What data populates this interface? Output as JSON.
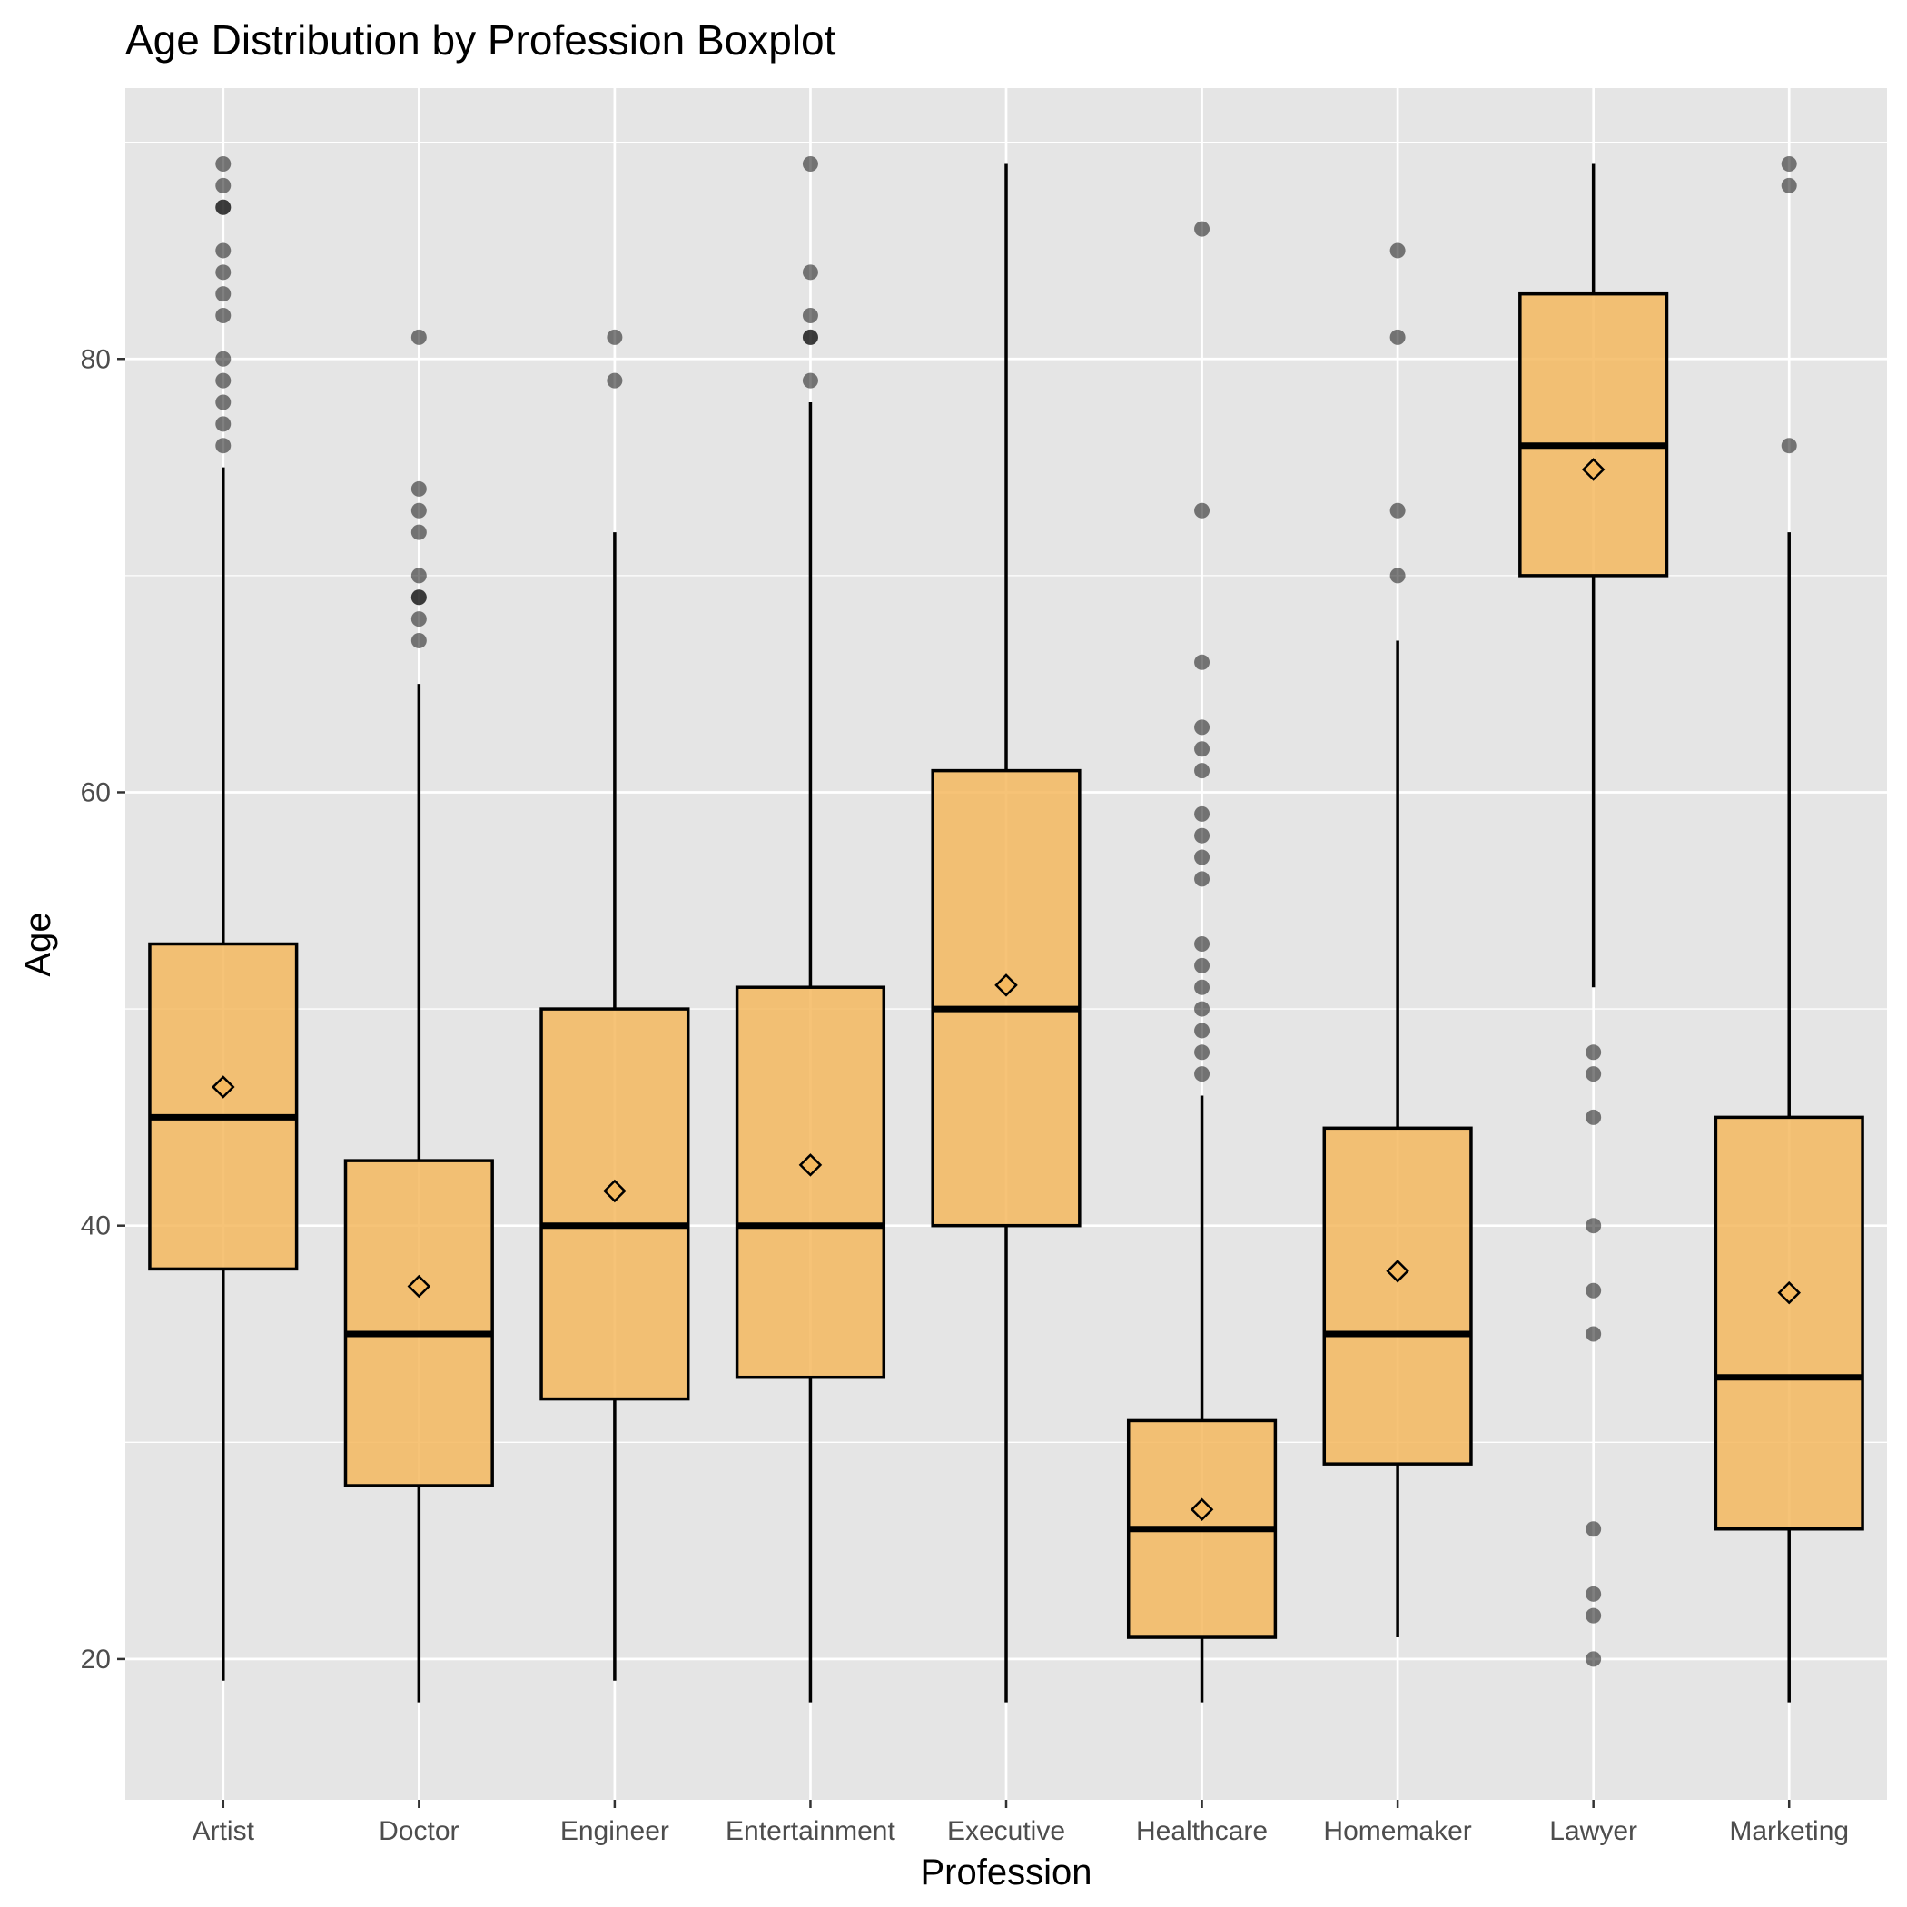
{
  "chart_data": {
    "type": "boxplot",
    "title": "Age Distribution by Profession Boxplot",
    "xlabel": "Profession",
    "ylabel": "Age",
    "ylim": [
      13.5,
      92.5
    ],
    "yticks": [
      20,
      40,
      60,
      80
    ],
    "grid": true,
    "legend": "none",
    "colors": {
      "panel": "#e5e5e5",
      "grid": "#ffffff",
      "box_fill": "#f5b95f",
      "box_stroke": "#000000",
      "outlier": "#000000",
      "mean_marker": "#000000"
    },
    "categories": [
      "Artist",
      "Doctor",
      "Engineer",
      "Entertainment",
      "Executive",
      "Healthcare",
      "Homemaker",
      "Lawyer",
      "Marketing"
    ],
    "boxes": [
      {
        "category": "Artist",
        "whisker_low": 19,
        "q1": 38,
        "median": 45,
        "q3": 53,
        "whisker_high": 75,
        "mean": 46.4,
        "outliers": [
          89,
          88,
          87,
          87,
          85,
          84,
          83,
          82,
          80,
          79,
          78,
          77,
          76
        ]
      },
      {
        "category": "Doctor",
        "whisker_low": 18,
        "q1": 28,
        "median": 35,
        "q3": 43,
        "whisker_high": 65,
        "mean": 37.2,
        "outliers": [
          81,
          74,
          73,
          72,
          70,
          69,
          69,
          68,
          67
        ]
      },
      {
        "category": "Engineer",
        "whisker_low": 19,
        "q1": 32,
        "median": 40,
        "q3": 50,
        "whisker_high": 72,
        "mean": 41.6,
        "outliers": [
          81,
          79
        ]
      },
      {
        "category": "Entertainment",
        "whisker_low": 18,
        "q1": 33,
        "median": 40,
        "q3": 51,
        "whisker_high": 78,
        "mean": 42.8,
        "outliers": [
          89,
          84,
          82,
          81,
          81,
          79
        ]
      },
      {
        "category": "Executive",
        "whisker_low": 18,
        "q1": 40,
        "median": 50,
        "q3": 61,
        "whisker_high": 89,
        "mean": 51.1,
        "outliers": []
      },
      {
        "category": "Healthcare",
        "whisker_low": 18,
        "q1": 21,
        "median": 26,
        "q3": 31,
        "whisker_high": 46,
        "mean": 26.9,
        "outliers": [
          86,
          73,
          66,
          63,
          62,
          61,
          59,
          58,
          57,
          56,
          53,
          52,
          51,
          50,
          49,
          48,
          47
        ]
      },
      {
        "category": "Homemaker",
        "whisker_low": 21,
        "q1": 29,
        "median": 35,
        "q3": 44.5,
        "whisker_high": 67,
        "mean": 37.9,
        "outliers": [
          85,
          81,
          73,
          70
        ]
      },
      {
        "category": "Lawyer",
        "whisker_low": 51,
        "q1": 70,
        "median": 76,
        "q3": 83,
        "whisker_high": 89,
        "mean": 74.9,
        "outliers": [
          48,
          47,
          45,
          40,
          37,
          35,
          26,
          23,
          22,
          20
        ]
      },
      {
        "category": "Marketing",
        "whisker_low": 18,
        "q1": 26,
        "median": 33,
        "q3": 45,
        "whisker_high": 72,
        "mean": 36.9,
        "outliers": [
          89,
          88,
          76
        ]
      }
    ]
  }
}
